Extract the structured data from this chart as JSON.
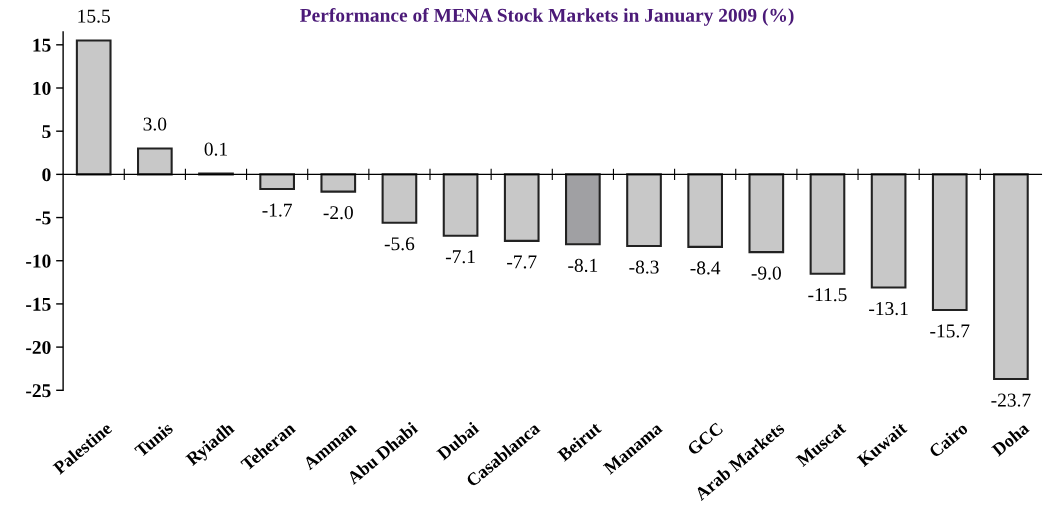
{
  "chart_data": {
    "type": "bar",
    "title": "Performance of MENA Stock Markets in January 2009 (%)",
    "categories": [
      "Palestine",
      "Tunis",
      "Ryiadh",
      "Teheran",
      "Amman",
      "Abu Dhabi",
      "Dubai",
      "Casablanca",
      "Beirut",
      "Manama",
      "GCC",
      "Arab Markets",
      "Muscat",
      "Kuwait",
      "Cairo",
      "Doha"
    ],
    "values": [
      15.5,
      3.0,
      0.1,
      -1.7,
      -2.0,
      -5.6,
      -7.1,
      -7.7,
      -8.1,
      -8.3,
      -8.4,
      -9.0,
      -11.5,
      -13.1,
      -15.7,
      -23.7
    ],
    "value_labels": [
      "15.5",
      "3.0",
      "0.1",
      "-1.7",
      "-2.0",
      "-5.6",
      "-7.1",
      "-7.7",
      "-8.1",
      "-8.3",
      "-8.4",
      "-9.0",
      "-11.5",
      "-13.1",
      "-15.7",
      "-23.7"
    ],
    "colors": [
      "#c8c8c8",
      "#c8c8c8",
      "#c8c8c8",
      "#c8c8c8",
      "#c8c8c8",
      "#c8c8c8",
      "#c8c8c8",
      "#c8c8c8",
      "#a0a0a3",
      "#c8c8c8",
      "#c8c8c8",
      "#c8c8c8",
      "#c8c8c8",
      "#c8c8c8",
      "#c8c8c8",
      "#c8c8c8"
    ],
    "ylim": [
      -25,
      16.5
    ],
    "yticks": [
      -25,
      -20,
      -15,
      -10,
      -5,
      0,
      5,
      10,
      15
    ],
    "legend": false
  }
}
